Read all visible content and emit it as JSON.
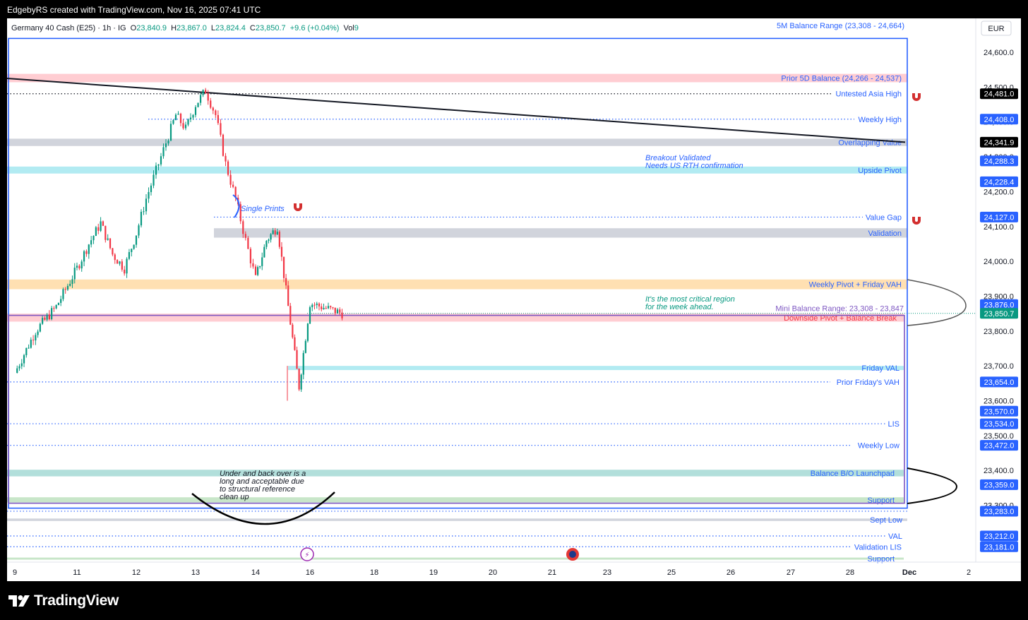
{
  "screenshot_caption": "EdgebyRS created with TradingView.com, Nov 16, 2025 07:41 UTC",
  "brand": "TradingView",
  "currency": "EUR",
  "header": {
    "symbol": "Germany 40 Cash (E25) · 1h · IG",
    "o_label": "O",
    "o_value": "23,840.9",
    "h_label": "H",
    "h_value": "23,867.0",
    "l_label": "L",
    "l_value": "23,824.4",
    "c_label": "C",
    "c_value": "23,850.7",
    "change": "+9.6 (+0.04%)",
    "vol_label": "Vol",
    "vol_value": "9"
  },
  "colors": {
    "up": "#089981",
    "down": "#f23645",
    "blue": "#2962ff",
    "purple": "#7e57c2",
    "pink_zone": "#ffcdd2",
    "gray_zone": "#d1d4dc",
    "cyan_zone": "#b2ebf2",
    "orange_zone": "#ffe0b2",
    "teal_zone": "#b2dfdb",
    "green_zone": "#c8e6c9"
  },
  "chart_data": {
    "type": "candlestick",
    "y_axis": {
      "range": [
        23160,
        24660
      ],
      "ticks": [
        "24,600.0",
        "24,500.0",
        "24,400.0",
        "24,300.0",
        "24,200.0",
        "24,100.0",
        "24,000.0",
        "23,900.0",
        "23,800.0",
        "23,700.0",
        "23,600.0",
        "23,500.0",
        "23,400.0",
        "23,300.0"
      ],
      "tick_values": [
        24600,
        24500,
        24400,
        24300,
        24200,
        24100,
        24000,
        23900,
        23800,
        23700,
        23600,
        23500,
        23400,
        23300
      ]
    },
    "x_axis": {
      "ticks": [
        "9",
        "11",
        "12",
        "13",
        "14",
        "16",
        "18",
        "19",
        "20",
        "21",
        "23",
        "25",
        "26",
        "27",
        "28",
        "Dec",
        "2"
      ]
    },
    "price_path": [
      [
        "9",
        23680
      ],
      [
        "9",
        23800
      ],
      [
        "9",
        23870
      ],
      [
        "11",
        23980
      ],
      [
        "11",
        24050
      ],
      [
        "11",
        24110
      ],
      [
        "11",
        24020
      ],
      [
        "11",
        23980
      ],
      [
        "12",
        24080
      ],
      [
        "12",
        24180
      ],
      [
        "12",
        24260
      ],
      [
        "12",
        24340
      ],
      [
        "12",
        24420
      ],
      [
        "12",
        24380
      ],
      [
        "13",
        24450
      ],
      [
        "13",
        24490
      ],
      [
        "13",
        24420
      ],
      [
        "13",
        24280
      ],
      [
        "13",
        24180
      ],
      [
        "13",
        24060
      ],
      [
        "14",
        23950
      ],
      [
        "14",
        24060
      ],
      [
        "14",
        24100
      ],
      [
        "14",
        23870
      ],
      [
        "14",
        23640
      ],
      [
        "16",
        23880
      ],
      [
        "16",
        23851
      ]
    ],
    "levels": [
      {
        "label": "5M Balance Range (23,308 - 24,664)",
        "kind": "range"
      },
      {
        "label": "Prior 5D Balance (24,266 - 24,537)",
        "kind": "zone",
        "from": 24514,
        "to": 24538,
        "color": "pink_zone"
      },
      {
        "label": "Untested Asia High",
        "kind": "dotted",
        "value": 24481
      },
      {
        "label": "Weekly High",
        "kind": "dotted",
        "value": 24408
      },
      {
        "label": "Overlapping Value",
        "kind": "zone",
        "from": 24331,
        "to": 24352,
        "color": "gray_zone"
      },
      {
        "label": "Upside Pivot",
        "kind": "zone",
        "from": 24252,
        "to": 24272,
        "color": "cyan_zone"
      },
      {
        "label": "Value Gap",
        "kind": "dotted",
        "value": 24127
      },
      {
        "label": "Validation",
        "kind": "zone",
        "from": 24068,
        "to": 24095,
        "color": "gray_zone"
      },
      {
        "label": "Weekly Pivot + Friday VAH",
        "kind": "zone",
        "from": 23920,
        "to": 23948,
        "color": "orange_zone"
      },
      {
        "label": "Mini Balance Range: 23,308 - 23,847",
        "kind": "range"
      },
      {
        "label": "Downside Pivot + Balance Break",
        "kind": "zone",
        "from": 23827,
        "to": 23850,
        "color": "pink_zone"
      },
      {
        "label": "Friday VAL",
        "kind": "zone",
        "from": 23688,
        "to": 23700,
        "color": "cyan_zone"
      },
      {
        "label": "Prior Friday's VAH",
        "kind": "dotted",
        "value": 23654
      },
      {
        "label": "LIS",
        "kind": "dotted",
        "value": 23534
      },
      {
        "label": "Weekly Low",
        "kind": "dotted",
        "value": 23472
      },
      {
        "label": "Balance B/O Launchpad",
        "kind": "zone",
        "from": 23383,
        "to": 23402,
        "color": "teal_zone"
      },
      {
        "label": "Support",
        "kind": "zone",
        "from": 23308,
        "to": 23323,
        "color": "green_zone"
      },
      {
        "label": "Sept Low",
        "kind": "zone",
        "from": 23255,
        "to": 23262,
        "color": "gray_zone"
      },
      {
        "label": "VAL",
        "kind": "dotted",
        "value": 23212
      },
      {
        "label": "Validation LIS",
        "kind": "dotted",
        "value": 23181
      },
      {
        "label": "Support",
        "kind": "zone",
        "from": 23144,
        "to": 23150,
        "color": "green_zone"
      }
    ],
    "price_labels": [
      {
        "text": "24,481.0",
        "style": "dark"
      },
      {
        "text": "24,408.0",
        "style": "blue"
      },
      {
        "text": "24,341.9",
        "style": "dark"
      },
      {
        "text": "24,288.3",
        "style": "blue"
      },
      {
        "text": "24,228.4",
        "style": "blue"
      },
      {
        "text": "24,127.0",
        "style": "blue"
      },
      {
        "text": "23,876.0",
        "style": "blue"
      },
      {
        "text": "23,850.7",
        "style": "green"
      },
      {
        "text": "23,654.0",
        "style": "blue"
      },
      {
        "text": "23,570.0",
        "style": "blue"
      },
      {
        "text": "23,534.0",
        "style": "blue"
      },
      {
        "text": "23,472.0",
        "style": "blue"
      },
      {
        "text": "23,359.0",
        "style": "blue"
      },
      {
        "text": "23,283.0",
        "style": "blue"
      },
      {
        "text": "23,212.0",
        "style": "blue"
      },
      {
        "text": "23,181.0",
        "style": "blue"
      }
    ],
    "annotations": [
      {
        "lines": [
          "Breakout Validated",
          "Needs US RTH confirmation"
        ],
        "color": "blue"
      },
      {
        "lines": [
          "Single Prints"
        ],
        "color": "blue"
      },
      {
        "lines": [
          "It's the most critical region",
          "for the week ahead."
        ],
        "color": "teal"
      },
      {
        "lines": [
          "Under and back over is a",
          "long and acceptable due",
          "to structural reference",
          "clean up"
        ],
        "color": "black"
      }
    ],
    "trendline": {
      "from": [
        "9",
        24525
      ],
      "to": [
        "28",
        24341.9
      ]
    }
  }
}
